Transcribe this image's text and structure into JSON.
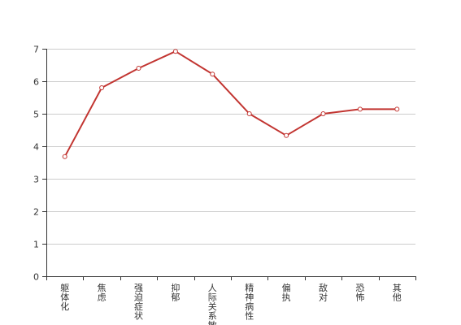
{
  "chart_data": {
    "type": "line",
    "title": "",
    "xlabel": "",
    "ylabel": "",
    "categories": [
      "躯体化",
      "焦虑",
      "强迫症状",
      "抑郁",
      "人际关系敏感",
      "精神病性",
      "偏执",
      "敌对",
      "恐怖",
      "其他"
    ],
    "series": [
      {
        "values": [
          3.68,
          5.8,
          6.4,
          6.92,
          6.22,
          5.0,
          4.33,
          5.0,
          5.14,
          5.14
        ]
      }
    ],
    "ylim": [
      0,
      7
    ],
    "yticks": [
      0,
      1,
      2,
      3,
      4,
      5,
      6,
      7
    ],
    "grid": true,
    "legend": "none",
    "colors": {
      "line": "#c23531",
      "grid": "#cccccc",
      "axis": "#333333"
    }
  }
}
